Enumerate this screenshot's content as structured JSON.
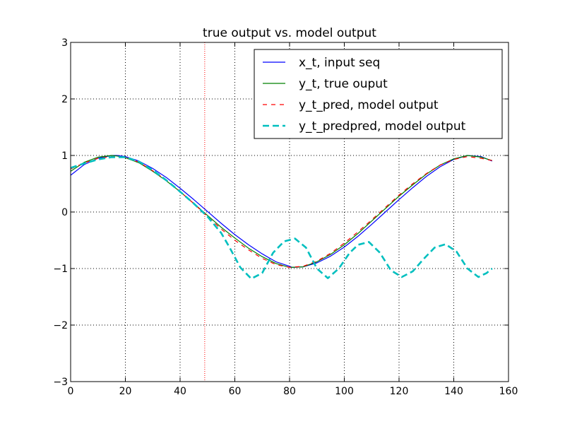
{
  "chart_data": {
    "type": "line",
    "title": "true output vs. model output",
    "xlabel": "",
    "ylabel": "",
    "xlim": [
      0,
      160
    ],
    "ylim": [
      -3,
      3
    ],
    "xticks": [
      0,
      20,
      40,
      60,
      80,
      100,
      120,
      140,
      160
    ],
    "yticks": [
      -3,
      -2,
      -1,
      0,
      1,
      2,
      3
    ],
    "xtick_labels": [
      "0",
      "20",
      "40",
      "60",
      "80",
      "100",
      "120",
      "140",
      "160"
    ],
    "ytick_labels": [
      "−3",
      "−2",
      "−1",
      "0",
      "1",
      "2",
      "3"
    ],
    "grid": true,
    "legend_position": "top-right",
    "vertical_marker": {
      "x": 49,
      "color": "#ff0000",
      "style": "dotted"
    },
    "series": [
      {
        "name": "x_t, input seq",
        "color": "#0000ff",
        "style": "solid",
        "x": [
          0,
          5,
          10,
          15,
          17,
          20,
          25,
          30,
          35,
          40,
          45,
          50,
          55,
          60,
          65,
          70,
          75,
          80,
          81,
          85,
          90,
          95,
          100,
          105,
          110,
          115,
          120,
          125,
          130,
          135,
          140,
          145,
          150,
          154
        ],
        "y": [
          0.65,
          0.84,
          0.95,
          1.0,
          1.0,
          0.98,
          0.9,
          0.77,
          0.61,
          0.42,
          0.22,
          0.01,
          -0.2,
          -0.4,
          -0.58,
          -0.74,
          -0.88,
          -0.96,
          -0.98,
          -0.97,
          -0.9,
          -0.78,
          -0.62,
          -0.43,
          -0.22,
          0.0,
          0.22,
          0.43,
          0.63,
          0.8,
          0.93,
          1.0,
          0.98,
          0.9
        ]
      },
      {
        "name": "y_t, true ouput",
        "color": "#008000",
        "style": "solid",
        "x": [
          0,
          5,
          10,
          15,
          17,
          20,
          25,
          30,
          35,
          40,
          45,
          50,
          55,
          60,
          65,
          70,
          75,
          80,
          85,
          90,
          95,
          100,
          105,
          110,
          115,
          120,
          125,
          130,
          135,
          140,
          145,
          150,
          154
        ],
        "y": [
          0.72,
          0.88,
          0.97,
          1.0,
          0.99,
          0.96,
          0.87,
          0.72,
          0.55,
          0.36,
          0.15,
          -0.06,
          -0.27,
          -0.46,
          -0.64,
          -0.79,
          -0.91,
          -0.98,
          -0.97,
          -0.88,
          -0.75,
          -0.58,
          -0.38,
          -0.16,
          0.06,
          0.28,
          0.48,
          0.67,
          0.83,
          0.94,
          1.0,
          0.97,
          0.91
        ]
      },
      {
        "name": "y_t_pred, model output",
        "color": "#ff0000",
        "style": "dashed",
        "x": [
          0,
          5,
          10,
          15,
          20,
          25,
          30,
          35,
          40,
          45,
          50,
          55,
          60,
          65,
          70,
          75,
          80,
          85,
          90,
          95,
          100,
          105,
          110,
          115,
          120,
          125,
          130,
          135,
          140,
          145,
          150,
          154
        ],
        "y": [
          0.76,
          0.87,
          0.95,
          0.98,
          0.97,
          0.88,
          0.73,
          0.56,
          0.36,
          0.15,
          -0.08,
          -0.3,
          -0.5,
          -0.67,
          -0.82,
          -0.93,
          -0.98,
          -0.96,
          -0.87,
          -0.73,
          -0.55,
          -0.35,
          -0.14,
          0.08,
          0.3,
          0.5,
          0.68,
          0.83,
          0.93,
          0.98,
          0.95,
          0.91
        ]
      },
      {
        "name": "y_t_predpred, model output",
        "color": "#00bfbf",
        "style": "dashed-thick",
        "x": [
          0,
          5,
          10,
          15,
          20,
          25,
          30,
          35,
          40,
          45,
          50,
          55,
          58,
          62,
          66,
          70,
          74,
          78,
          82,
          86,
          90,
          94,
          98,
          102,
          105,
          109,
          113,
          117,
          121,
          125,
          129,
          133,
          137,
          141,
          145,
          149,
          152,
          154
        ],
        "y": [
          0.78,
          0.86,
          0.93,
          0.97,
          0.97,
          0.89,
          0.74,
          0.56,
          0.36,
          0.15,
          -0.08,
          -0.37,
          -0.62,
          -0.98,
          -1.18,
          -1.08,
          -0.72,
          -0.52,
          -0.47,
          -0.63,
          -1.0,
          -1.17,
          -1.0,
          -0.72,
          -0.58,
          -0.53,
          -0.72,
          -1.03,
          -1.15,
          -1.05,
          -0.83,
          -0.63,
          -0.57,
          -0.7,
          -1.0,
          -1.15,
          -1.08,
          -1.0
        ]
      }
    ]
  }
}
